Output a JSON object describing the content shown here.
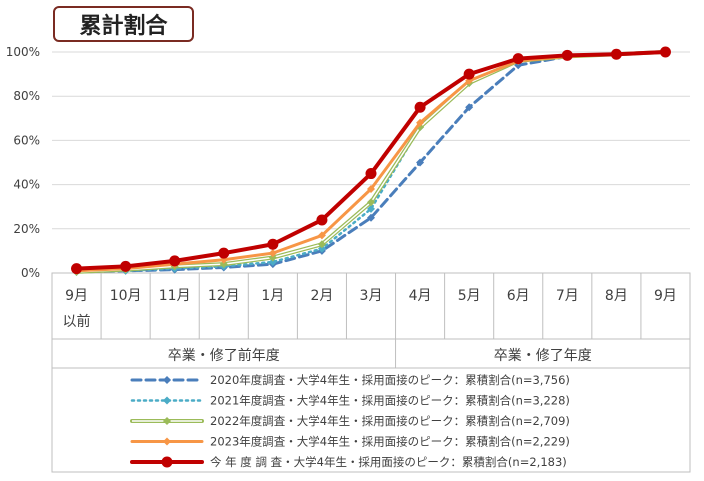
{
  "chart_data": {
    "type": "line",
    "title": "累計割合",
    "categories": [
      [
        "9月",
        "以前"
      ],
      [
        "10月"
      ],
      [
        "11月"
      ],
      [
        "12月"
      ],
      [
        "1月"
      ],
      [
        "2月"
      ],
      [
        "3月"
      ],
      [
        "4月"
      ],
      [
        "5月"
      ],
      [
        "6月"
      ],
      [
        "7月"
      ],
      [
        "8月"
      ],
      [
        "9月"
      ]
    ],
    "groups": [
      {
        "label": "卒業・修了前年度",
        "span": [
          0,
          6
        ]
      },
      {
        "label": "卒業・修了年度",
        "span": [
          7,
          12
        ]
      }
    ],
    "yticks": [
      "0%",
      "20%",
      "40%",
      "60%",
      "80%",
      "100%"
    ],
    "ylim": [
      0,
      100
    ],
    "grid": true,
    "legend_position": "bottom",
    "series": [
      {
        "name": "2020年度調査・大学4年生・採用面接のピーク：累積割合(n=3,756)",
        "color": "#4a7ebb",
        "style": "dashed",
        "marker": "diamond",
        "values": [
          0.5,
          1,
          1.5,
          2.5,
          4,
          10,
          25,
          50,
          75,
          94,
          98,
          99,
          100
        ]
      },
      {
        "name": "2021年度調査・大学4年生・採用面接のピーク：累積割合(n=3,228)",
        "color": "#4bacc6",
        "style": "dotted",
        "marker": "diamond",
        "values": [
          0.5,
          1,
          2,
          3,
          5,
          11,
          29,
          66,
          86,
          96,
          98,
          99,
          100
        ]
      },
      {
        "name": "2022年度調査・大学4年生・採用面接のピーク：累積割合(n=2,709)",
        "color": "#9bbb59",
        "style": "double",
        "marker": "diamond",
        "values": [
          0.5,
          1.5,
          3,
          4,
          7,
          13,
          32,
          66,
          86,
          96,
          98,
          99,
          100
        ]
      },
      {
        "name": "2023年度調査・大学4年生・採用面接のピーク：累積割合(n=2,229)",
        "color": "#f79646",
        "style": "solid",
        "marker": "diamond",
        "values": [
          1,
          2,
          4,
          6,
          9,
          17,
          38,
          68,
          87,
          96,
          98,
          99,
          100
        ]
      },
      {
        "name": "今 年 度 調 査・大学4年生・採用面接のピーク：累積割合(n=2,183)",
        "color": "#c00000",
        "style": "thick",
        "marker": "circle",
        "values": [
          2,
          3,
          5.5,
          9,
          13,
          24,
          45,
          75,
          90,
          97,
          98.5,
          99,
          100
        ]
      }
    ]
  }
}
